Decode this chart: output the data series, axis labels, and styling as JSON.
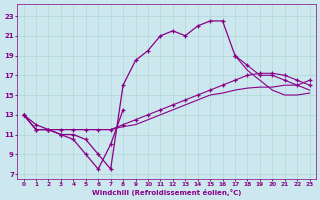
{
  "background_color": "#cce8ee",
  "grid_color": "#aadddd",
  "line_color": "#880088",
  "xlabel": "Windchill (Refroidissement éolien,°C)",
  "xlim": [
    -0.5,
    23.5
  ],
  "ylim": [
    6.5,
    24.2
  ],
  "xticks": [
    0,
    1,
    2,
    3,
    4,
    5,
    6,
    7,
    8,
    9,
    10,
    11,
    12,
    13,
    14,
    15,
    16,
    17,
    18,
    19,
    20,
    21,
    22,
    23
  ],
  "yticks": [
    7,
    9,
    11,
    13,
    15,
    17,
    19,
    21,
    23
  ],
  "curve1_x": [
    0,
    1,
    2,
    3,
    4,
    5,
    6,
    7,
    8
  ],
  "curve1_y": [
    13.0,
    12.0,
    11.5,
    11.0,
    10.5,
    9.0,
    7.5,
    10.0,
    13.5
  ],
  "curve2_x": [
    0,
    1,
    2,
    3,
    4,
    5,
    6,
    7,
    8,
    9,
    10,
    11,
    12,
    13,
    14,
    15,
    16,
    17
  ],
  "curve2_y": [
    13.0,
    11.5,
    11.5,
    11.0,
    11.0,
    10.5,
    9.0,
    7.5,
    16.0,
    18.5,
    19.5,
    21.0,
    21.5,
    21.0,
    22.0,
    22.5,
    22.5,
    19.0
  ],
  "curve3_x": [
    0,
    1,
    2,
    3,
    4,
    5,
    6,
    7,
    8,
    9,
    10,
    11,
    12,
    13,
    14,
    15,
    16,
    17,
    18,
    19,
    20,
    21,
    22,
    23
  ],
  "curve3_y": [
    13.0,
    11.5,
    11.5,
    11.5,
    11.5,
    11.5,
    11.5,
    11.5,
    12.0,
    12.5,
    13.0,
    13.5,
    14.0,
    14.5,
    15.0,
    15.5,
    16.0,
    16.5,
    17.0,
    17.2,
    17.2,
    17.0,
    16.5,
    16.0
  ],
  "curve4_x": [
    0,
    1,
    2,
    3,
    4,
    5,
    6,
    7,
    8,
    9,
    10,
    11,
    12,
    13,
    14,
    15,
    16,
    17,
    18,
    19,
    20,
    21,
    22,
    23
  ],
  "curve4_y": [
    13.0,
    11.5,
    11.5,
    11.5,
    11.5,
    11.5,
    11.5,
    11.5,
    11.8,
    12.0,
    12.5,
    13.0,
    13.5,
    14.0,
    14.5,
    15.0,
    15.2,
    15.5,
    15.7,
    15.8,
    15.8,
    16.0,
    16.0,
    15.5
  ],
  "curve5_x": [
    17,
    18,
    19,
    20,
    21,
    22,
    23
  ],
  "curve5_y": [
    19.0,
    18.0,
    17.0,
    17.0,
    16.5,
    16.0,
    16.5
  ],
  "curve6_x": [
    17,
    18,
    19,
    20,
    21,
    22,
    23
  ],
  "curve6_y": [
    19.0,
    17.5,
    16.5,
    15.5,
    15.0,
    15.0,
    15.2
  ]
}
